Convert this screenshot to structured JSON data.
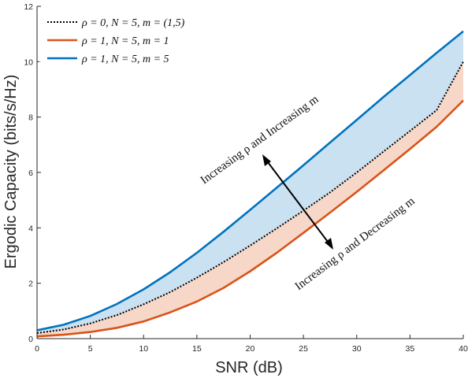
{
  "chart_data": {
    "type": "line",
    "xlabel": "SNR (dB)",
    "ylabel": "Ergodic Capacity (bits/s/Hz)",
    "xlim": [
      0,
      40
    ],
    "ylim": [
      0,
      12
    ],
    "xticks": [
      "0",
      "5",
      "10",
      "15",
      "20",
      "25",
      "30",
      "35",
      "40"
    ],
    "yticks": [
      "0",
      "2",
      "4",
      "6",
      "8",
      "10",
      "12"
    ],
    "grid": false,
    "legend_position": "top-left",
    "series": [
      {
        "name": "ρ = 0, N = 5, m = (1,5)",
        "style": "dotted",
        "color": "#000000",
        "x": [
          0,
          2.5,
          5,
          7.5,
          10,
          12.5,
          15,
          17.5,
          20,
          22.5,
          25,
          27.5,
          30,
          32.5,
          35,
          37.5,
          40
        ],
        "y": [
          0.2,
          0.33,
          0.55,
          0.85,
          1.24,
          1.68,
          2.2,
          2.76,
          3.36,
          3.98,
          4.62,
          5.28,
          6.0,
          6.75,
          7.5,
          8.25,
          10.0
        ]
      },
      {
        "name": "ρ = 1, N = 5, m = 1",
        "style": "solid",
        "color": "#d95319",
        "x": [
          0,
          2.5,
          5,
          7.5,
          10,
          12.5,
          15,
          17.5,
          20,
          22.5,
          25,
          27.5,
          30,
          32.5,
          35,
          37.5,
          40
        ],
        "y": [
          0.08,
          0.14,
          0.24,
          0.39,
          0.62,
          0.95,
          1.34,
          1.83,
          2.43,
          3.1,
          3.82,
          4.55,
          5.3,
          6.07,
          6.85,
          7.65,
          8.6
        ]
      },
      {
        "name": "ρ = 1, N = 5, m = 5",
        "style": "solid",
        "color": "#0072bd",
        "x": [
          0,
          2.5,
          5,
          7.5,
          10,
          12.5,
          15,
          17.5,
          20,
          22.5,
          25,
          27.5,
          30,
          32.5,
          35,
          37.5,
          40
        ],
        "y": [
          0.3,
          0.5,
          0.82,
          1.25,
          1.78,
          2.4,
          3.1,
          3.86,
          4.65,
          5.45,
          6.26,
          7.08,
          7.9,
          8.72,
          9.52,
          10.32,
          11.1
        ]
      }
    ],
    "fill_regions": [
      {
        "between": [
          0,
          2
        ],
        "color": "#c9e1f1"
      },
      {
        "between": [
          1,
          0
        ],
        "color": "#f7d7c8"
      }
    ],
    "annotations": [
      {
        "text": "Increasing ρ and Increasing m"
      },
      {
        "text": "Increasing ρ and Decreasing m"
      }
    ]
  }
}
